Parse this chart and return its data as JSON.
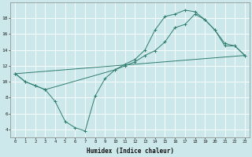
{
  "xlabel": "Humidex (Indice chaleur)",
  "background_color": "#cce8ea",
  "grid_color": "#ffffff",
  "line_color": "#2e7d6e",
  "line1": {
    "x": [
      0,
      1,
      2,
      3,
      4,
      5,
      6,
      7,
      8,
      9,
      10,
      11,
      12,
      13,
      14,
      15,
      16,
      17,
      18,
      19,
      20,
      21,
      22,
      23
    ],
    "y": [
      11,
      10,
      9.5,
      9.0,
      7.5,
      5.0,
      4.2,
      3.8,
      8.2,
      10.4,
      11.5,
      12.2,
      12.8,
      14.0,
      16.5,
      18.2,
      18.5,
      19.0,
      18.8,
      17.8,
      16.5,
      14.8,
      14.5,
      13.3
    ]
  },
  "line2": {
    "x": [
      0,
      1,
      2,
      3,
      10,
      11,
      12,
      13,
      14,
      15,
      16,
      17,
      18,
      19,
      20,
      21,
      22,
      23
    ],
    "y": [
      11,
      10,
      9.5,
      9.0,
      11.5,
      12.0,
      12.5,
      13.3,
      13.9,
      15.0,
      16.8,
      17.2,
      18.5,
      17.8,
      16.5,
      14.5,
      14.5,
      13.3
    ]
  },
  "line3": {
    "x": [
      0,
      23
    ],
    "y": [
      11,
      13.3
    ]
  },
  "xlim": [
    -0.5,
    23.5
  ],
  "ylim": [
    3,
    20
  ],
  "yticks": [
    4,
    6,
    8,
    10,
    12,
    14,
    16,
    18
  ],
  "xticks": [
    0,
    1,
    2,
    3,
    4,
    5,
    6,
    7,
    8,
    9,
    10,
    11,
    12,
    13,
    14,
    15,
    16,
    17,
    18,
    19,
    20,
    21,
    22,
    23
  ]
}
